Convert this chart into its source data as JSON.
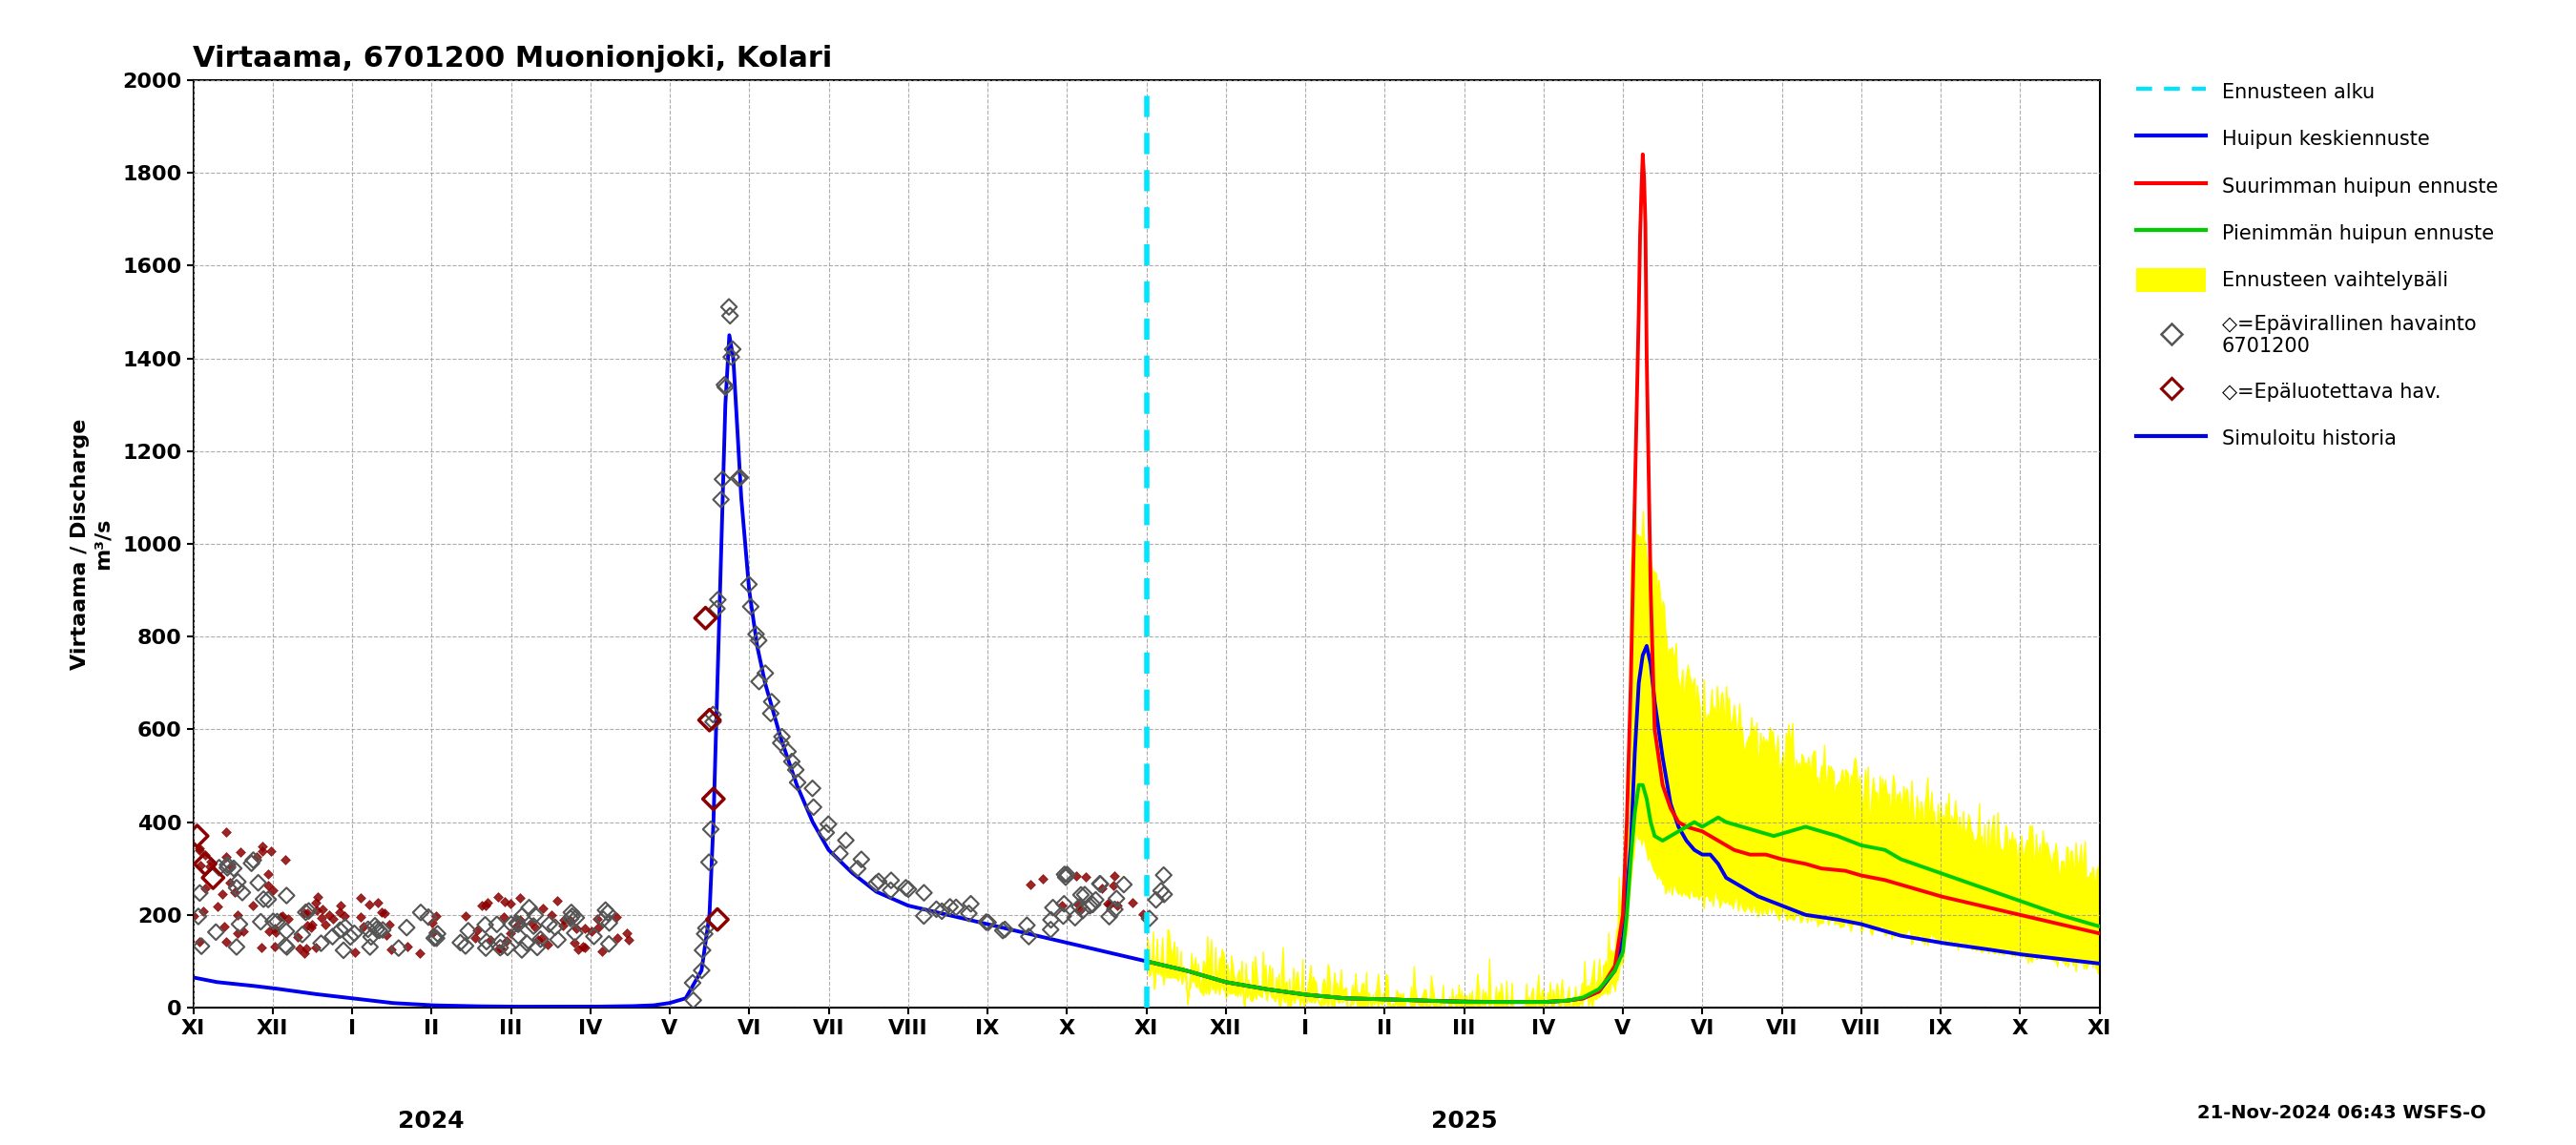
{
  "title": "Virtaama, 6701200 Muonionjoki, Kolari",
  "ylabel1": "Virtaama / Discharge",
  "ylabel2": "m³/s",
  "ylim": [
    0,
    2000
  ],
  "yticks": [
    0,
    200,
    400,
    600,
    800,
    1000,
    1200,
    1400,
    1600,
    1800,
    2000
  ],
  "footnote": "21-Nov-2024 06:43 WSFS-O",
  "color_blue": "#0000ee",
  "color_red": "#ff0000",
  "color_green": "#00cc00",
  "color_yellow": "#ffff00",
  "color_cyan": "#00e5ff",
  "color_darkred": "#8b0000",
  "color_gray": "#555555"
}
